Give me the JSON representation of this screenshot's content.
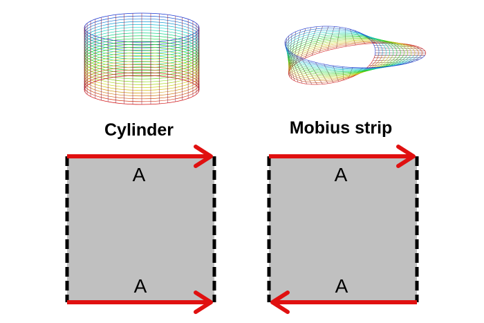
{
  "diagram": {
    "cylinder": {
      "title": "Cylinder",
      "top_label": "A",
      "bottom_label": "A",
      "top_arrow_direction": "right",
      "bottom_arrow_direction": "right"
    },
    "mobius": {
      "title": "Mobius strip",
      "top_label": "A",
      "bottom_label": "A",
      "top_arrow_direction": "right",
      "bottom_arrow_direction": "left"
    }
  },
  "colors": {
    "arrow": "#e01010",
    "square_fill": "#c0c0c0",
    "dashed_edge": "#000000"
  }
}
